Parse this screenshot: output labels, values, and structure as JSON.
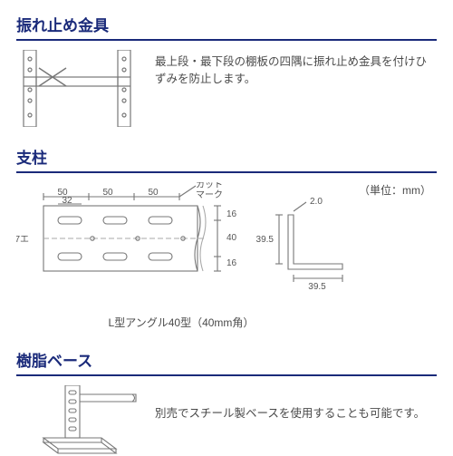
{
  "colors": {
    "heading_text": "#1a2a7a",
    "underline": "#1a2a7a",
    "body_text": "#4a4a4a",
    "diagram_stroke": "#777777",
    "diagram_stroke_light": "#aaaaaa",
    "dim_text": "#555555"
  },
  "typography": {
    "heading_fontsize": 17,
    "body_fontsize": 12.5,
    "caption_fontsize": 12,
    "dim_fontsize": 10
  },
  "sections": {
    "brace": {
      "title": "振れ止め金具",
      "description": "最上段・最下段の棚板の四隅に振れ止め金具を付けひずみを防止します。"
    },
    "post": {
      "title": "支柱",
      "unit_label": "（単位：mm）",
      "caption": "L型アングル40型（40mm角）",
      "dims": {
        "top_a": "50",
        "top_b": "50",
        "top_c": "50",
        "inner": "32",
        "left_pitch": "7エ",
        "v16a": "16",
        "v40": "40",
        "v16b": "16",
        "cut_mark": "カット\nマーク",
        "angle_a": "39.5",
        "angle_b": "39.5",
        "angle_t": "2.0"
      }
    },
    "base": {
      "title": "樹脂ベース",
      "description": "別売でスチール製ベースを使用することも可能です。"
    }
  }
}
